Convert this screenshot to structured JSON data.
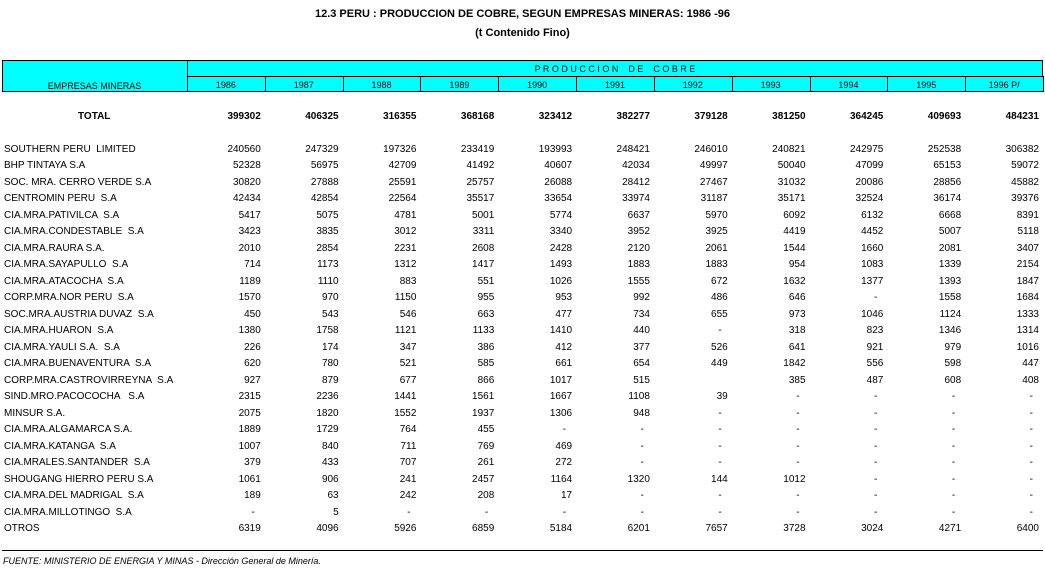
{
  "header": {
    "title": "12.3 PERU : PRODUCCION DE COBRE, SEGUN EMPRESAS MINERAS: 1986 -96",
    "subtitle": "(t Contenido Fino)"
  },
  "table": {
    "row_header": "EMPRESAS MINERAS",
    "group_header": "P R O D U C C I O N    D E    C O B R E",
    "columns": [
      "1986",
      "1987",
      "1988",
      "1989",
      "1990",
      "1991",
      "1992",
      "1993",
      "1994",
      "1995",
      "1996 P/"
    ],
    "total": {
      "label": "TOTAL",
      "values": [
        399302,
        406325,
        316355,
        368168,
        323412,
        382277,
        379128,
        381250,
        364245,
        409693,
        484231
      ]
    },
    "rows": [
      {
        "label": "SOUTHERN PERU  LIMITED",
        "values": [
          240560,
          247329,
          197326,
          233419,
          193993,
          248421,
          246010,
          240821,
          242975,
          252538,
          306382
        ]
      },
      {
        "label": "BHP TINTAYA S.A",
        "values": [
          52328,
          56975,
          42709,
          41492,
          40607,
          42034,
          49997,
          50040,
          47099,
          65153,
          59072
        ]
      },
      {
        "label": "SOC. MRA. CERRO VERDE S.A",
        "values": [
          30820,
          27888,
          25591,
          25757,
          26088,
          28412,
          27467,
          31032,
          20086,
          28856,
          45882
        ]
      },
      {
        "label": "CENTROMIN PERU  S.A",
        "values": [
          42434,
          42854,
          22564,
          35517,
          33654,
          33974,
          31187,
          35171,
          32524,
          36174,
          39376
        ]
      },
      {
        "label": "CIA.MRA.PATIVILCA  S.A",
        "values": [
          5417,
          5075,
          4781,
          5001,
          5774,
          6637,
          5970,
          6092,
          6132,
          6668,
          8391
        ]
      },
      {
        "label": "CIA.MRA.CONDESTABLE  S.A",
        "values": [
          3423,
          3835,
          3012,
          3311,
          3340,
          3952,
          3925,
          4419,
          4452,
          5007,
          5118
        ]
      },
      {
        "label": "CIA.MRA.RAURA S.A.",
        "values": [
          2010,
          2854,
          2231,
          2608,
          2428,
          2120,
          2061,
          1544,
          1660,
          2081,
          3407
        ]
      },
      {
        "label": "CIA.MRA.SAYAPULLO  S.A",
        "values": [
          714,
          1173,
          1312,
          1417,
          1493,
          1883,
          1883,
          954,
          1083,
          1339,
          2154
        ]
      },
      {
        "label": "CIA.MRA.ATACOCHA  S.A",
        "values": [
          1189,
          1110,
          883,
          551,
          1026,
          1555,
          672,
          1632,
          1377,
          1393,
          1847
        ]
      },
      {
        "label": "CORP.MRA.NOR PERU  S.A",
        "values": [
          1570,
          970,
          1150,
          955,
          953,
          992,
          486,
          646,
          "-",
          1558,
          1684
        ]
      },
      {
        "label": "SOC.MRA.AUSTRIA DUVAZ  S.A",
        "values": [
          450,
          543,
          546,
          663,
          477,
          734,
          655,
          973,
          1046,
          1124,
          1333
        ]
      },
      {
        "label": "CIA.MRA.HUARON  S.A",
        "values": [
          1380,
          1758,
          1121,
          1133,
          1410,
          440,
          "-",
          318,
          823,
          1346,
          1314
        ]
      },
      {
        "label": "CIA.MRA.YAULI S.A.  S.A",
        "values": [
          226,
          174,
          347,
          386,
          412,
          377,
          526,
          641,
          921,
          979,
          1016
        ]
      },
      {
        "label": "CIA.MRA.BUENAVENTURA  S.A",
        "values": [
          620,
          780,
          521,
          585,
          661,
          654,
          449,
          1842,
          556,
          598,
          447
        ]
      },
      {
        "label": "CORP.MRA.CASTROVIRREYNA  S.A",
        "values": [
          927,
          879,
          677,
          866,
          1017,
          515,
          null,
          385,
          487,
          608,
          408
        ]
      },
      {
        "label": "SIND.MRO.PACOCOCHA   S.A",
        "values": [
          2315,
          2236,
          1441,
          1561,
          1667,
          1108,
          39,
          "-",
          "-",
          "-",
          "-"
        ]
      },
      {
        "label": "MINSUR S.A.",
        "values": [
          2075,
          1820,
          1552,
          1937,
          1306,
          948,
          "-",
          "-",
          "-",
          "-",
          "-"
        ]
      },
      {
        "label": "CIA.MRA.ALGAMARCA S.A.",
        "values": [
          1889,
          1729,
          764,
          455,
          "-",
          "-",
          "-",
          "-",
          "-",
          "-",
          "-"
        ]
      },
      {
        "label": "CIA.MRA.KATANGA  S.A",
        "values": [
          1007,
          840,
          711,
          769,
          469,
          "-",
          "-",
          "-",
          "-",
          "-",
          "-"
        ]
      },
      {
        "label": "CIA.MRALES.SANTANDER  S.A",
        "values": [
          379,
          433,
          707,
          261,
          272,
          "-",
          "-",
          "-",
          "-",
          "-",
          "-"
        ]
      },
      {
        "label": "SHOUGANG HIERRO PERU S.A",
        "values": [
          1061,
          906,
          241,
          2457,
          1164,
          1320,
          144,
          1012,
          "-",
          "-",
          "-"
        ]
      },
      {
        "label": "CIA.MRA.DEL MADRIGAL  S.A",
        "values": [
          189,
          63,
          242,
          208,
          17,
          "-",
          "-",
          "-",
          "-",
          "-",
          "-"
        ]
      },
      {
        "label": "CIA.MRA.MILLOTINGO  S.A",
        "values": [
          "-",
          5,
          "-",
          "-",
          "-",
          "-",
          "-",
          "-",
          "-",
          "-",
          "-"
        ]
      },
      {
        "label": "OTROS",
        "values": [
          6319,
          4096,
          5926,
          6859,
          5184,
          6201,
          7657,
          3728,
          3024,
          4271,
          6400
        ]
      }
    ]
  },
  "footer": {
    "source": "FUENTE: MINISTERIO DE ENERGIA Y MINAS - Dirección General de Minería."
  }
}
